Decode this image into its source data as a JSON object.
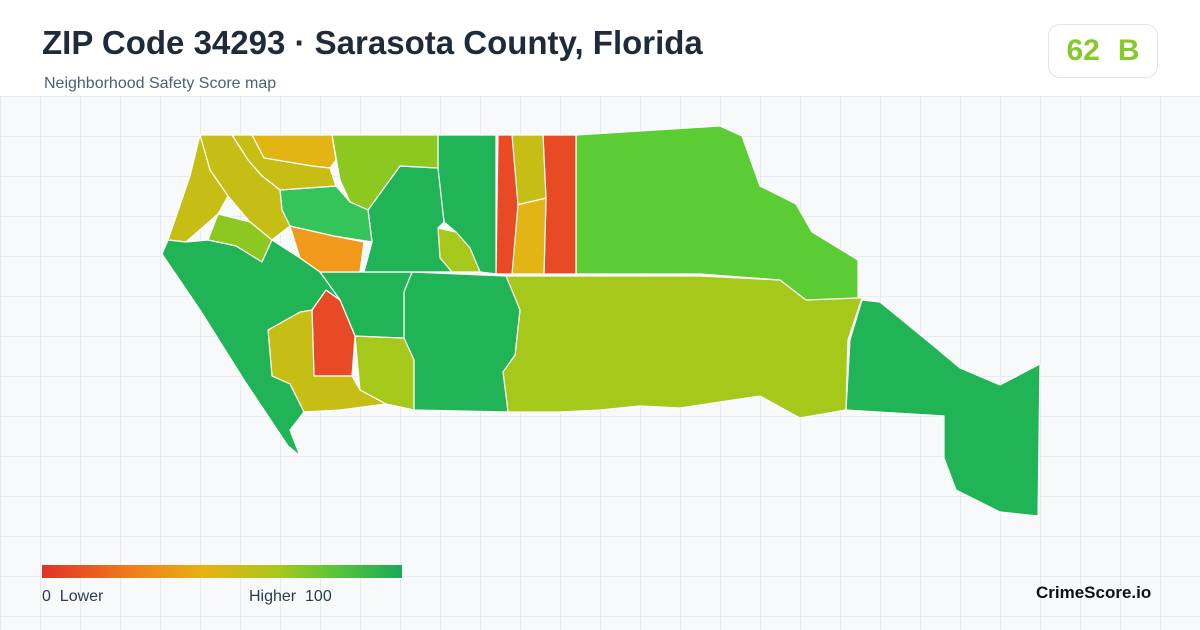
{
  "header": {
    "title": "ZIP Code 34293 · Sarasota County, Florida",
    "subtitle": "Neighborhood Safety Score map"
  },
  "score": {
    "value": "62",
    "grade": "B"
  },
  "legend": {
    "low_value": "0",
    "low_label": "Lower",
    "high_label": "Higher",
    "high_value": "100"
  },
  "brand": "CrimeScore.io",
  "colors": {
    "red": "#e84a26",
    "orange": "#f0991a",
    "amber": "#e2b414",
    "olive": "#c6be14",
    "yellow_green": "#a6c81a",
    "lime": "#8cc820",
    "green": "#5ccc34",
    "bright_green": "#34c45a",
    "deep_green": "#20b457"
  }
}
